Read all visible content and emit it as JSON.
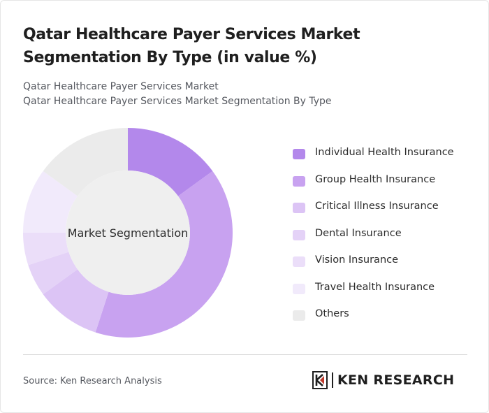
{
  "title": "Qatar Healthcare Payer Services Market Segmentation By Type (in value %)",
  "subtitle_line1": "Qatar Healthcare Payer Services Market",
  "subtitle_line2": "Qatar Healthcare Payer Services Market Segmentation By Type",
  "source": "Source: Ken Research Analysis",
  "logo_text": "KEN RESEARCH",
  "chart_data": {
    "type": "pie",
    "center_label": "Market Segmentation",
    "categories": [
      "Individual Health Insurance",
      "Group Health Insurance",
      "Critical Illness Insurance",
      "Dental Insurance",
      "Vision Insurance",
      "Travel Health Insurance",
      "Others"
    ],
    "values": [
      15,
      40,
      10,
      5,
      5,
      10,
      15
    ],
    "colors": [
      "#b388eb",
      "#c8a2f0",
      "#dcc4f5",
      "#e4d2f7",
      "#ebdef9",
      "#f1eafb",
      "#ebebeb"
    ],
    "legend_position": "right"
  }
}
